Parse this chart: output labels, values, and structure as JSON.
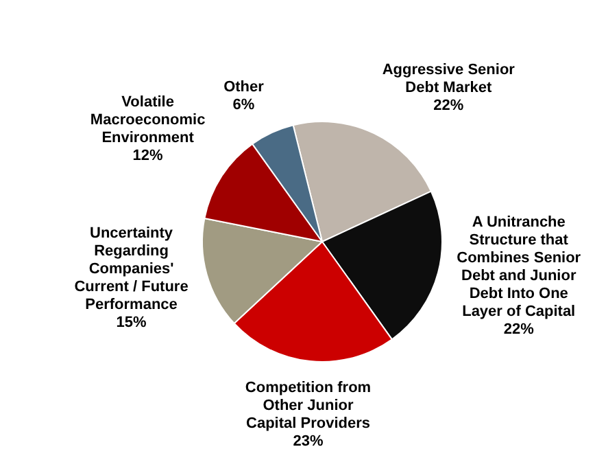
{
  "chart_data": {
    "type": "pie",
    "categories": [
      "Aggressive Senior Debt Market",
      "A Unitranche Structure that Combines Senior Debt and Junior Debt Into One Layer of Capital",
      "Competition from Other Junior Capital Providers",
      "Uncertainty Regarding Companies' Current / Future Performance",
      "Volatile Macroeconomic Environment",
      "Other"
    ],
    "values": [
      22,
      22,
      23,
      15,
      12,
      6
    ],
    "value_labels": [
      "22%",
      "22%",
      "23%",
      "15%",
      "12%",
      "6%"
    ],
    "colors": [
      "#bfb5ab",
      "#0d0d0d",
      "#cc0000",
      "#a19b82",
      "#a00000",
      "#4a6b85"
    ],
    "legend": false
  }
}
